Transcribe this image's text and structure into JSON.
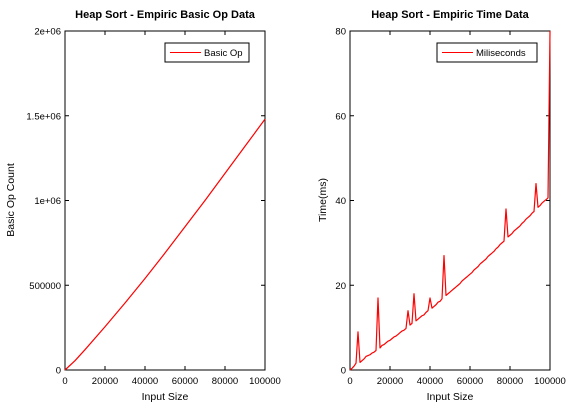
{
  "chart_data": [
    {
      "type": "line",
      "title": "Heap Sort - Empiric Basic Op Data",
      "xlabel": "Input Size",
      "ylabel": "Basic Op Count",
      "xlim": [
        0,
        100000
      ],
      "ylim": [
        0,
        2000000
      ],
      "xticks": [
        0,
        20000,
        40000,
        60000,
        80000,
        100000
      ],
      "xtick_labels": [
        "0",
        "20000",
        "40000",
        "60000",
        "80000",
        "100000"
      ],
      "yticks": [
        0,
        500000,
        1000000,
        1500000,
        2000000
      ],
      "ytick_labels": [
        "0",
        "500000",
        "1e+06",
        "1.5e+06",
        "2e+06"
      ],
      "grid": false,
      "legend_position": "top-right",
      "series": [
        {
          "name": "Basic Op",
          "color": "#ff0000",
          "x": [
            0,
            5000,
            10000,
            20000,
            30000,
            40000,
            50000,
            60000,
            70000,
            80000,
            90000,
            100000
          ],
          "y": [
            0,
            55000,
            120000,
            255000,
            395000,
            540000,
            690000,
            845000,
            1000000,
            1160000,
            1320000,
            1480000
          ]
        }
      ]
    },
    {
      "type": "line",
      "title": "Heap Sort - Empiric Time Data",
      "xlabel": "Input Size",
      "ylabel": "Time(ms)",
      "xlim": [
        0,
        100000
      ],
      "ylim": [
        0,
        80
      ],
      "xticks": [
        0,
        20000,
        40000,
        60000,
        80000,
        100000
      ],
      "xtick_labels": [
        "0",
        "20000",
        "40000",
        "60000",
        "80000",
        "100000"
      ],
      "yticks": [
        0,
        20,
        40,
        60,
        80
      ],
      "ytick_labels": [
        "0",
        "20",
        "40",
        "60",
        "80"
      ],
      "grid": false,
      "legend_position": "top-right",
      "series": [
        {
          "name": "Miliseconds",
          "color": "#ff0000",
          "x": [
            0,
            1000,
            2000,
            3000,
            4000,
            5000,
            6000,
            7000,
            8000,
            9000,
            10000,
            11000,
            12000,
            13000,
            14000,
            15000,
            16000,
            17000,
            18000,
            19000,
            20000,
            21000,
            22000,
            23000,
            24000,
            25000,
            26000,
            27000,
            28000,
            29000,
            30000,
            31000,
            32000,
            33000,
            34000,
            35000,
            36000,
            37000,
            38000,
            39000,
            40000,
            41000,
            42000,
            43000,
            44000,
            45000,
            46000,
            47000,
            48000,
            49000,
            50000,
            51000,
            52000,
            53000,
            54000,
            55000,
            56000,
            57000,
            58000,
            59000,
            60000,
            61000,
            62000,
            63000,
            64000,
            65000,
            66000,
            67000,
            68000,
            69000,
            70000,
            71000,
            72000,
            73000,
            74000,
            75000,
            76000,
            77000,
            78000,
            79000,
            80000,
            81000,
            82000,
            83000,
            84000,
            85000,
            86000,
            87000,
            88000,
            89000,
            90000,
            91000,
            92000,
            93000,
            94000,
            95000,
            96000,
            97000,
            98000,
            99000,
            100000
          ],
          "y": [
            0,
            0.4,
            0.9,
            1.6,
            9,
            1.8,
            2.2,
            2.6,
            3.2,
            3.4,
            3.6,
            4,
            4.2,
            4.6,
            17,
            5.2,
            5.8,
            6,
            6.4,
            6.8,
            7,
            7.4,
            7.8,
            8,
            8.4,
            8.8,
            9.2,
            9.4,
            9.8,
            14,
            10.6,
            11,
            18,
            11.6,
            12,
            12.4,
            12.8,
            13,
            13.6,
            14,
            17,
            14.6,
            15,
            15.4,
            16,
            16.2,
            16.8,
            27,
            17.6,
            18,
            18.4,
            18.8,
            19.2,
            19.6,
            20,
            20.4,
            21,
            21.4,
            21.8,
            22.2,
            22.6,
            23,
            23.6,
            24,
            24.4,
            25,
            25.4,
            25.8,
            26.2,
            26.8,
            27.2,
            27.6,
            28,
            28.6,
            29,
            29.6,
            30,
            30.4,
            38,
            31.4,
            31.8,
            32.2,
            32.8,
            33.2,
            33.6,
            34,
            34.6,
            35,
            35.6,
            36,
            36.4,
            37,
            37.4,
            44,
            38.4,
            38.8,
            39.4,
            39.8,
            40.2,
            40.6,
            80
          ]
        }
      ]
    }
  ]
}
